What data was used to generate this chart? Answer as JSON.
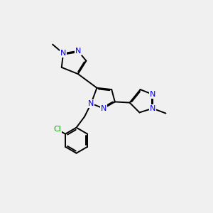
{
  "bg_color": "#f0f0f0",
  "bond_color": "#000000",
  "N_color": "#0000ee",
  "Cl_color": "#00aa00",
  "bond_lw": 1.4,
  "dbl_sep": 0.06,
  "fs": 8.0,
  "xlim": [
    0,
    10
  ],
  "ylim": [
    0,
    10
  ]
}
